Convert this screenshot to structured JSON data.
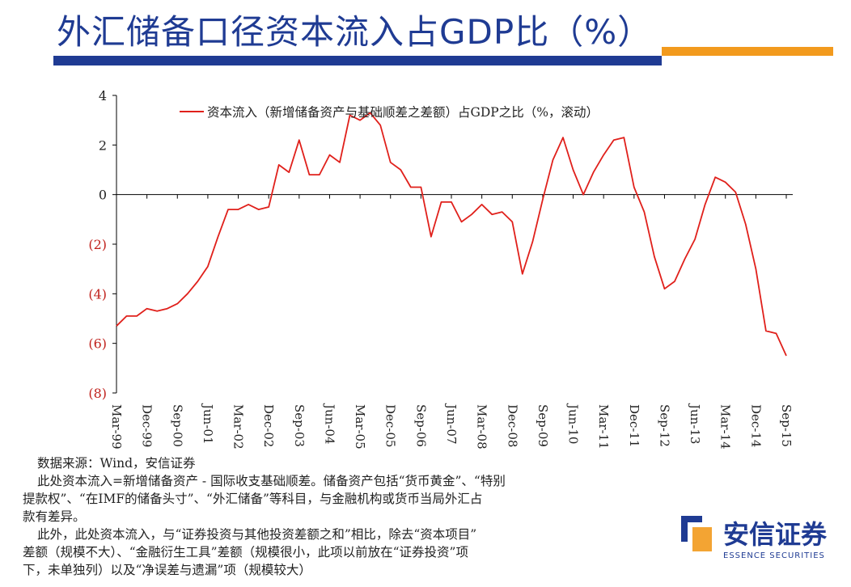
{
  "header": {
    "title": "外汇储备口径资本流入占GDP比（%）",
    "accent_blue": "#1f3b93",
    "accent_orange": "#f29a1d"
  },
  "chart_data": {
    "type": "line",
    "title": "",
    "legend": [
      "资本流入（新增储备资产与基础顺差之差额）占GDP之比（%，滚动）"
    ],
    "legend_position": "top-center",
    "line_color": "#e0201b",
    "xlabel": "",
    "ylabel": "",
    "ylim": [
      -8,
      4
    ],
    "y_ticks": [
      4,
      2,
      0,
      -2,
      -4,
      -6,
      -8
    ],
    "y_tick_labels": [
      "4",
      "2",
      "0",
      "(2)",
      "(4)",
      "(6)",
      "(8)"
    ],
    "x_tick_labels": [
      "Mar-99",
      "Dec-99",
      "Sep-00",
      "Jun-01",
      "Mar-02",
      "Dec-02",
      "Sep-03",
      "Jun-04",
      "Mar-05",
      "Dec-05",
      "Sep-06",
      "Jun-07",
      "Mar-08",
      "Dec-08",
      "Sep-09",
      "Jun-10",
      "Mar-11",
      "Dec-11",
      "Sep-12",
      "Jun-13",
      "Mar-14",
      "Dec-14",
      "Sep-15"
    ],
    "series": [
      {
        "name": "资本流入（新增储备资产与基础顺差之差额）占GDP之比（%，滚动）",
        "x_start": "Mar-99",
        "frequency": "quarterly",
        "values": [
          -5.3,
          -4.9,
          -4.9,
          -4.6,
          -4.7,
          -4.6,
          -4.4,
          -4.0,
          -3.5,
          -2.9,
          -1.7,
          -0.6,
          -0.6,
          -0.4,
          -0.6,
          -0.5,
          1.2,
          0.9,
          2.2,
          0.8,
          0.8,
          1.6,
          1.3,
          3.2,
          3.0,
          3.3,
          2.8,
          1.3,
          1.0,
          0.3,
          0.3,
          -1.7,
          -0.3,
          -0.3,
          -1.1,
          -0.8,
          -0.4,
          -0.8,
          -0.7,
          -1.1,
          -3.2,
          -1.9,
          -0.2,
          1.4,
          2.3,
          1.0,
          0.0,
          0.9,
          1.6,
          2.2,
          2.3,
          0.3,
          -0.7,
          -2.5,
          -3.8,
          -3.5,
          -2.6,
          -1.8,
          -0.4,
          0.7,
          0.5,
          0.1,
          -1.2,
          -3.0,
          -5.5,
          -5.6,
          -6.5
        ]
      }
    ]
  },
  "notes": {
    "source": "数据来源：Wind，安信证券",
    "line1": "此处资本流入=新增储备资产 - 国际收支基础顺差。储备资产包括“货币黄金”、“特别",
    "line2": "提款权”、“在IMF的储备头寸”、“外汇储备”等科目，与金融机构或货币当局外汇占",
    "line3": "款有差异。",
    "line4": "此外，此处资本流入，与“证券投资与其他投资差额之和”相比，除去“资本项目”",
    "line5": "差额（规模不大）、“金融衍生工具”差额（规模很小，此项以前放在“证券投资”项",
    "line6": "下，未单独列）以及“净误差与遗漏”项（规模较大）"
  },
  "logo": {
    "name": "安信证券",
    "subtitle": "ESSENCE SECURITIES"
  }
}
